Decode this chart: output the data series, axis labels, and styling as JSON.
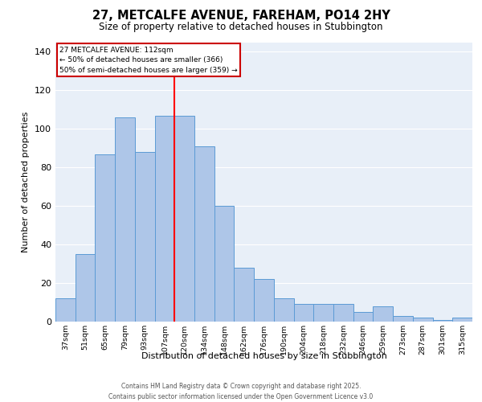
{
  "title": "27, METCALFE AVENUE, FAREHAM, PO14 2HY",
  "subtitle": "Size of property relative to detached houses in Stubbington",
  "xlabel": "Distribution of detached houses by size in Stubbington",
  "ylabel": "Number of detached properties",
  "bins": [
    "37sqm",
    "51sqm",
    "65sqm",
    "79sqm",
    "93sqm",
    "107sqm",
    "120sqm",
    "134sqm",
    "148sqm",
    "162sqm",
    "176sqm",
    "190sqm",
    "204sqm",
    "218sqm",
    "232sqm",
    "246sqm",
    "259sqm",
    "273sqm",
    "287sqm",
    "301sqm",
    "315sqm"
  ],
  "values": [
    12,
    35,
    87,
    106,
    88,
    107,
    107,
    91,
    60,
    28,
    22,
    12,
    9,
    9,
    9,
    5,
    8,
    3,
    2,
    1,
    2
  ],
  "bar_color": "#aec6e8",
  "bar_edge_color": "#5b9bd5",
  "red_line_bin_index": 5.5,
  "annotation_title": "27 METCALFE AVENUE: 112sqm",
  "annotation_line1": "← 50% of detached houses are smaller (366)",
  "annotation_line2": "50% of semi-detached houses are larger (359) →",
  "annotation_box_edge": "#cc0000",
  "footnote1": "Contains HM Land Registry data © Crown copyright and database right 2025.",
  "footnote2": "Contains public sector information licensed under the Open Government Licence v3.0",
  "bg_color": "#e8eff8",
  "ylim": [
    0,
    145
  ],
  "yticks": [
    0,
    20,
    40,
    60,
    80,
    100,
    120,
    140
  ]
}
